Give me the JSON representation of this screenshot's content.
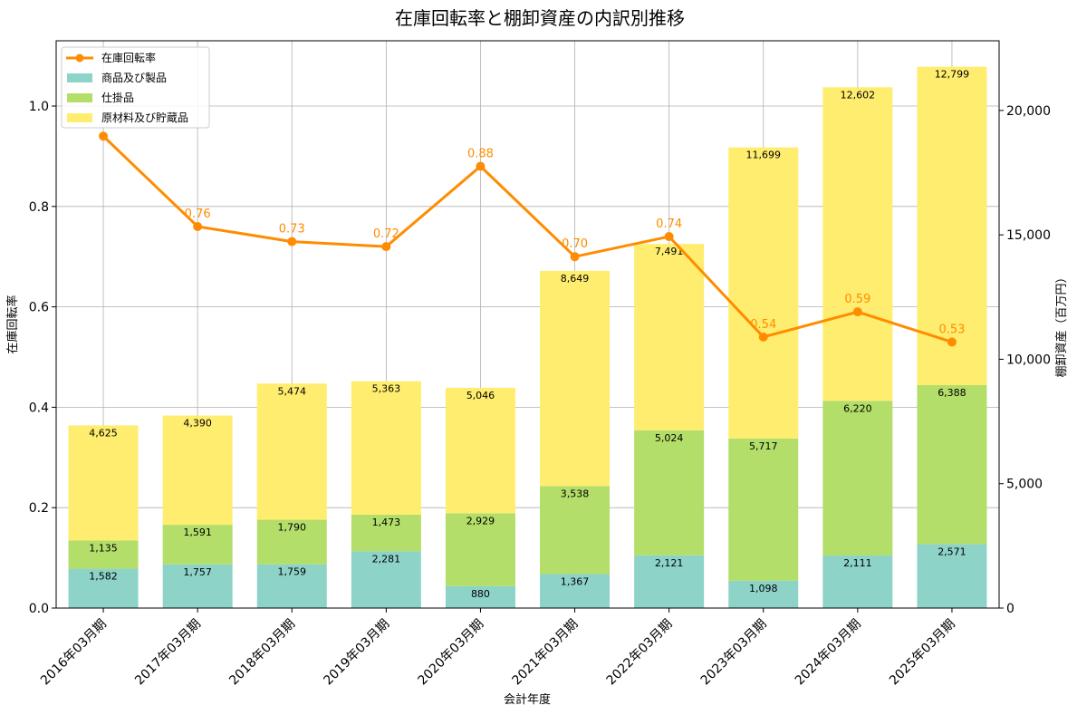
{
  "chart_data": {
    "type": "bar",
    "title": "在庫回転率と棚卸資産の内訳別推移",
    "xlabel": "会計年度",
    "ylabel_left": "在庫回転率",
    "ylabel_right": "棚卸資産（百万円）",
    "categories": [
      "2016年03月期",
      "2017年03月期",
      "2018年03月期",
      "2019年03月期",
      "2020年03月期",
      "2021年03月期",
      "2022年03月期",
      "2023年03月期",
      "2024年03月期",
      "2025年03月期"
    ],
    "ylim_left": [
      0,
      1.13
    ],
    "ylim_right": [
      0,
      22800
    ],
    "left_ticks": [
      "0.0",
      "0.2",
      "0.4",
      "0.6",
      "0.8",
      "1.0"
    ],
    "right_ticks": [
      "0",
      "5,000",
      "10,000",
      "15,000",
      "20,000"
    ],
    "grid": true,
    "legend_position": "top-left",
    "series": [
      {
        "name": "商品及び製品",
        "kind": "bar",
        "color": "#8dd3c7",
        "values": [
          1582,
          1757,
          1759,
          2281,
          880,
          1367,
          2121,
          1098,
          2111,
          2571
        ],
        "labels": [
          "1,582",
          "1,757",
          "1,759",
          "2,281",
          "880",
          "1,367",
          "2,121",
          "1,098",
          "2,111",
          "2,571"
        ]
      },
      {
        "name": "仕掛品",
        "kind": "bar",
        "color": "#b3de69",
        "values": [
          1135,
          1591,
          1790,
          1473,
          2929,
          3538,
          5024,
          5717,
          6220,
          6388
        ],
        "labels": [
          "1,135",
          "1,591",
          "1,790",
          "1,473",
          "2,929",
          "3,538",
          "5,024",
          "5,717",
          "6,220",
          "6,388"
        ]
      },
      {
        "name": "原材料及び貯蔵品",
        "kind": "bar",
        "color": "#ffed6f",
        "values": [
          4625,
          4390,
          5474,
          5363,
          5046,
          8649,
          7491,
          11699,
          12602,
          12799
        ],
        "labels": [
          "4,625",
          "4,390",
          "5,474",
          "5,363",
          "5,046",
          "8,649",
          "7,491",
          "11,699",
          "12,602",
          "12,799"
        ]
      },
      {
        "name": "在庫回転率",
        "kind": "line",
        "color": "#ff8c00",
        "values": [
          0.94,
          0.76,
          0.73,
          0.72,
          0.88,
          0.7,
          0.74,
          0.54,
          0.59,
          0.53
        ],
        "labels": [
          "",
          "0.76",
          "0.73",
          "0.72",
          "0.88",
          "0.70",
          "0.74",
          "0.54",
          "0.59",
          "0.53"
        ]
      }
    ]
  }
}
